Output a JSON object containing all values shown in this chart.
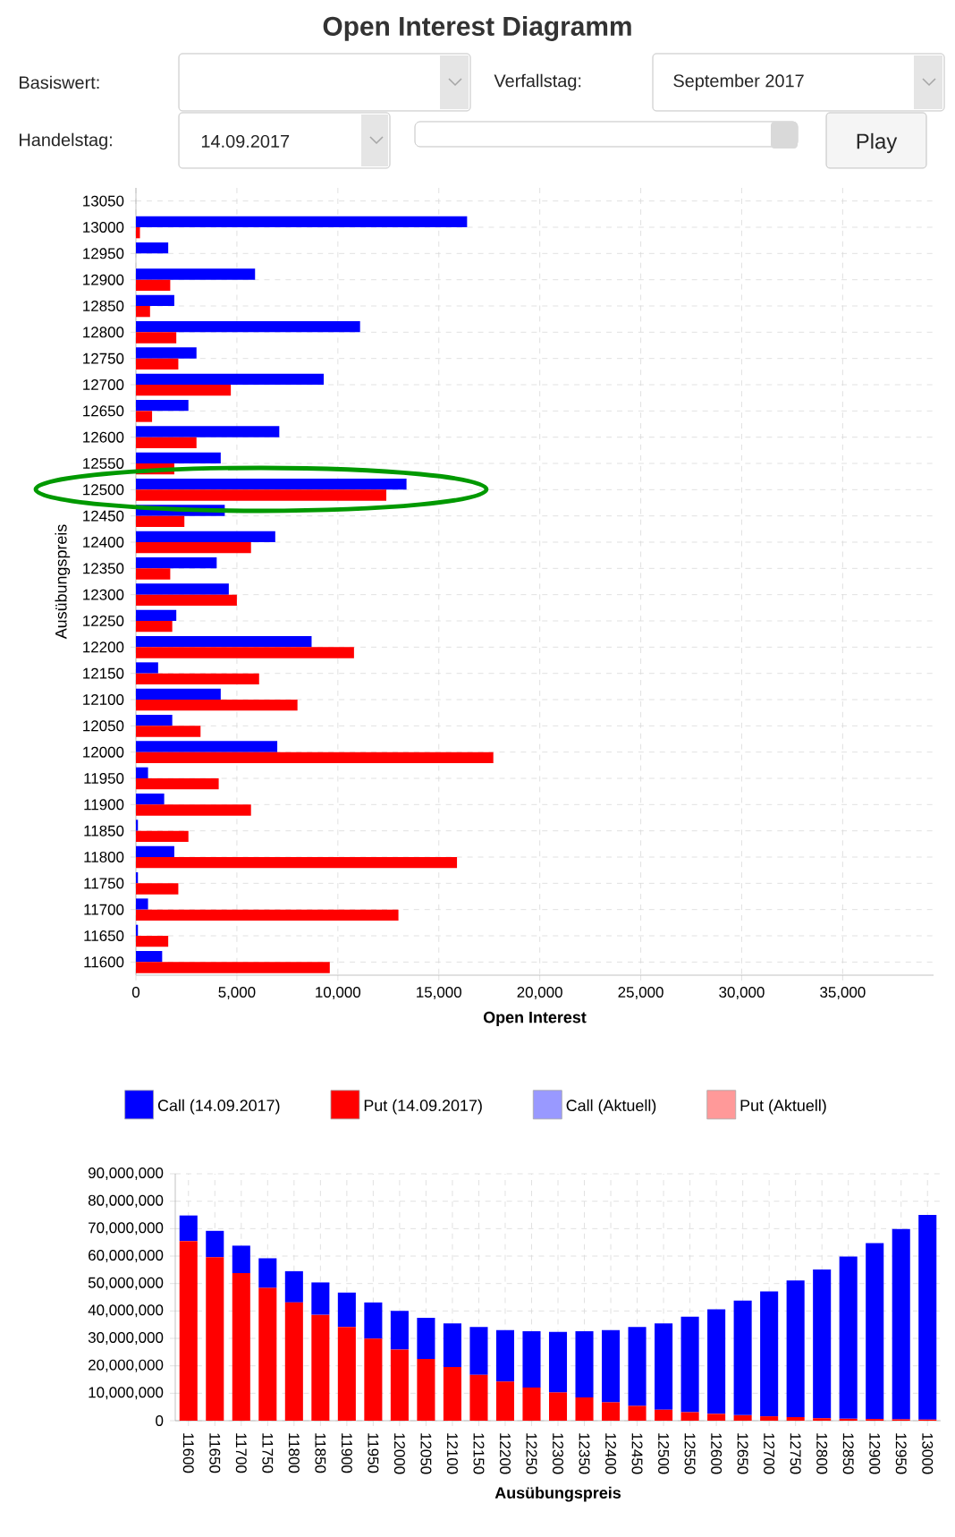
{
  "chart_data": [
    {
      "type": "bar",
      "orientation": "horizontal",
      "title": "Open Interest Diagramm",
      "xlabel": "Open Interest",
      "ylabel": "Ausübungspreis",
      "categories": [
        "13050",
        "13000",
        "12950",
        "12900",
        "12850",
        "12800",
        "12750",
        "12700",
        "12650",
        "12600",
        "12550",
        "12500",
        "12450",
        "12400",
        "12350",
        "12300",
        "12250",
        "12200",
        "12150",
        "12100",
        "12050",
        "12000",
        "11950",
        "11900",
        "11850",
        "11800",
        "11750",
        "11700",
        "11650",
        "11600"
      ],
      "series": [
        {
          "name": "Call (14.09.2017)",
          "color": "#0000ff",
          "values": [
            null,
            16400,
            1600,
            5900,
            1900,
            11100,
            3000,
            9300,
            2600,
            7100,
            4200,
            13400,
            4400,
            6900,
            4000,
            4600,
            2000,
            8700,
            1100,
            4200,
            1800,
            7000,
            600,
            1400,
            100,
            1900,
            100,
            600,
            100,
            1300
          ]
        },
        {
          "name": "Put (14.09.2017)",
          "color": "#ff0000",
          "values": [
            null,
            200,
            null,
            1700,
            700,
            2000,
            2100,
            4700,
            800,
            3000,
            1900,
            12400,
            2400,
            5700,
            1700,
            5000,
            1800,
            10800,
            6100,
            8000,
            3200,
            17700,
            4100,
            5700,
            2600,
            15900,
            2100,
            13000,
            1600,
            9600
          ]
        },
        {
          "name": "Call (Aktuell)",
          "color": "#9999ff",
          "values": [
            null,
            null,
            null,
            null,
            null,
            null,
            null,
            null,
            null,
            null,
            null,
            null,
            null,
            null,
            null,
            null,
            null,
            null,
            null,
            null,
            null,
            null,
            null,
            null,
            null,
            null,
            null,
            null,
            null,
            null
          ]
        },
        {
          "name": "Put (Aktuell)",
          "color": "#ff9999",
          "values": [
            null,
            null,
            null,
            null,
            null,
            null,
            null,
            null,
            null,
            null,
            null,
            null,
            null,
            null,
            null,
            null,
            null,
            null,
            null,
            null,
            null,
            null,
            null,
            null,
            null,
            null,
            null,
            null,
            null,
            null
          ]
        }
      ],
      "xlim": [
        0,
        39500
      ],
      "xticks": [
        0,
        {
          "value": 5000,
          "label": "5,000"
        },
        {
          "value": 10000,
          "label": "10,000"
        },
        {
          "value": 15000,
          "label": "15,000"
        },
        {
          "value": 20000,
          "label": "20,000"
        },
        {
          "value": 25000,
          "label": "25,000"
        },
        {
          "value": 30000,
          "label": "30,000"
        },
        {
          "value": 35000,
          "label": "35,000"
        }
      ],
      "grid": true,
      "legend": "bottom",
      "annotations": [
        "Basiswert:",
        "Verfallstag:",
        "September 2017",
        "Handelstag:",
        "14.09.2017",
        "Play"
      ]
    },
    {
      "type": "bar",
      "stacked": true,
      "xlabel": "Ausübungspreis",
      "categories": [
        "11600",
        "11650",
        "11700",
        "11750",
        "11800",
        "11850",
        "11900",
        "11950",
        "12000",
        "12050",
        "12100",
        "12150",
        "12200",
        "12250",
        "12300",
        "12350",
        "12400",
        "12450",
        "12500",
        "12550",
        "12600",
        "12650",
        "12700",
        "12750",
        "12800",
        "12850",
        "12900",
        "12950",
        "13000"
      ],
      "series": [
        {
          "color": "#ff0000",
          "values": [
            65500000,
            59600000,
            53800000,
            48400000,
            43100000,
            38600000,
            34200000,
            29900000,
            25900000,
            22500000,
            19600000,
            16700000,
            14300000,
            12100000,
            10300000,
            8500000,
            6700000,
            5400000,
            4000000,
            3100000,
            2500000,
            2000000,
            1600000,
            1300000,
            900000,
            700000,
            600000,
            500000,
            400000
          ]
        },
        {
          "color": "#0000ff",
          "values": [
            9300000,
            9600000,
            10000000,
            10800000,
            11400000,
            11800000,
            12500000,
            13200000,
            14100000,
            15000000,
            15900000,
            17500000,
            18700000,
            20500000,
            22100000,
            24100000,
            26300000,
            28800000,
            31500000,
            34800000,
            38100000,
            41800000,
            45500000,
            49800000,
            54200000,
            59100000,
            64100000,
            69400000,
            74600000
          ]
        }
      ],
      "ylim": [
        0,
        90000000
      ],
      "yticks": [
        0,
        {
          "value": 10000000,
          "label": "10,000,000"
        },
        {
          "value": 20000000,
          "label": "20,000,000"
        },
        {
          "value": 30000000,
          "label": "30,000,000"
        },
        {
          "value": 40000000,
          "label": "40,000,000"
        },
        {
          "value": 50000000,
          "label": "50,000,000"
        },
        {
          "value": 60000000,
          "label": "60,000,000"
        },
        {
          "value": 70000000,
          "label": "70,000,000"
        },
        {
          "value": 80000000,
          "label": "80,000,000"
        },
        {
          "value": 90000000,
          "label": "90,000,000"
        }
      ],
      "grid": true
    }
  ]
}
